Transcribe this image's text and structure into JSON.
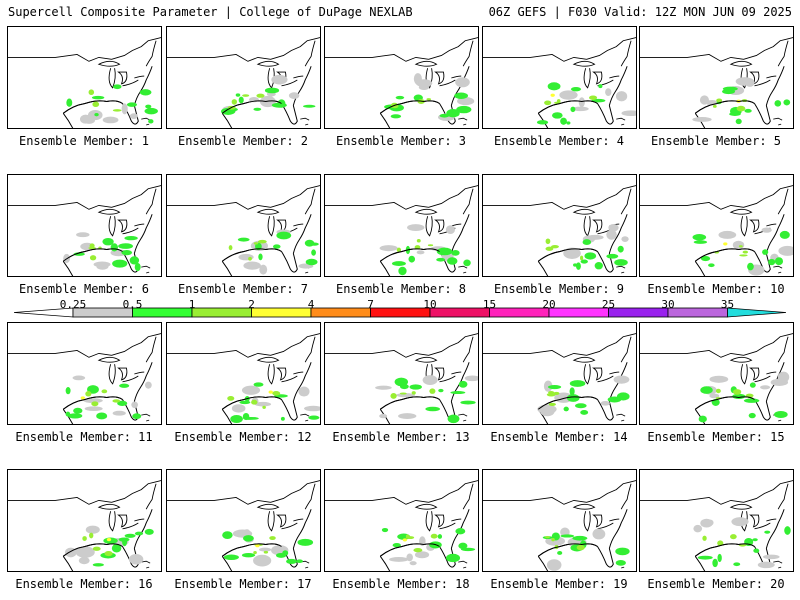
{
  "header": {
    "left": "Supercell Composite Parameter | College of DuPage NEXLAB",
    "right": "06Z GEFS | F030 Valid: 12Z MON JUN 09 2025"
  },
  "members": [
    {
      "label": "Ensemble Member: 1"
    },
    {
      "label": "Ensemble Member: 2"
    },
    {
      "label": "Ensemble Member: 3"
    },
    {
      "label": "Ensemble Member: 4"
    },
    {
      "label": "Ensemble Member: 5"
    },
    {
      "label": "Ensemble Member: 6"
    },
    {
      "label": "Ensemble Member: 7"
    },
    {
      "label": "Ensemble Member: 8"
    },
    {
      "label": "Ensemble Member: 9"
    },
    {
      "label": "Ensemble Member: 10"
    },
    {
      "label": "Ensemble Member: 11"
    },
    {
      "label": "Ensemble Member: 12"
    },
    {
      "label": "Ensemble Member: 13"
    },
    {
      "label": "Ensemble Member: 14"
    },
    {
      "label": "Ensemble Member: 15"
    },
    {
      "label": "Ensemble Member: 16"
    },
    {
      "label": "Ensemble Member: 17"
    },
    {
      "label": "Ensemble Member: 18"
    },
    {
      "label": "Ensemble Member: 19"
    },
    {
      "label": "Ensemble Member: 20"
    }
  ],
  "colorbar": {
    "labels": [
      "0.25",
      "0.5",
      "1",
      "2",
      "4",
      "7",
      "10",
      "15",
      "20",
      "25",
      "30",
      "35"
    ],
    "colors": [
      "#cccccc",
      "#33ff33",
      "#99ee33",
      "#ffff33",
      "#ff8c1a",
      "#ff1111",
      "#ee1166",
      "#ff22bb",
      "#ff33ff",
      "#9922ee",
      "#bb66dd",
      "#22dddd"
    ]
  }
}
